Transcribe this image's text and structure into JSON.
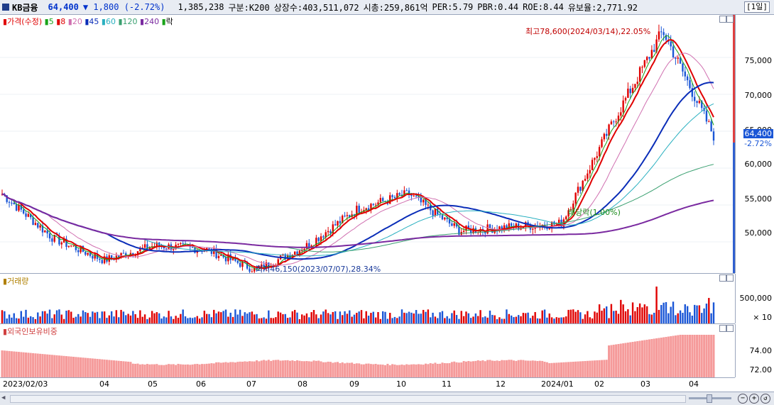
{
  "header": {
    "name": "KB금융",
    "price": "64,400",
    "change": "▼ 1,800 (-2.72%)",
    "volume": "1,385,238",
    "segment": "구분:K200",
    "shares": "상장수:403,511,072",
    "market_cap": "시총:259,861억",
    "per": "PER:5.79",
    "pbr": "PBR:0.44",
    "roe": "ROE:8.44",
    "float": "유보율:2,771.92",
    "period": "[1일]"
  },
  "legend": {
    "price_label": "가격(수정)",
    "items": [
      {
        "label": "5",
        "color": "#19a319"
      },
      {
        "label": "8",
        "color": "#e00000"
      },
      {
        "label": "20",
        "color": "#d070b0"
      },
      {
        "label": "45",
        "color": "#0a2db8"
      },
      {
        "label": "60",
        "color": "#2ab0c0"
      },
      {
        "label": "120",
        "color": "#3aa070"
      },
      {
        "label": "240",
        "color": "#7a2aa0"
      }
    ],
    "tail_label": "락"
  },
  "volume_pane": {
    "label": "거래량",
    "y_ticks": [
      "500,000",
      "× 10"
    ]
  },
  "foreign_pane": {
    "label": "외국인보유비중",
    "y_ticks": [
      "74.00",
      "72.00"
    ]
  },
  "price_axis": {
    "ticks": [
      "75,000",
      "70,000",
      "65,000",
      "60,000",
      "55,000",
      "50,000"
    ],
    "current": "64,400",
    "current_pct": "-2.72%"
  },
  "annotations": {
    "high": "최고78,600(2024/03/14),22.05%",
    "low": "최저46,150(2023/07/07),28.34%",
    "dividend": "배당락(1.00%)"
  },
  "x_axis": {
    "ticks": [
      "2023/02/03",
      "04",
      "05",
      "06",
      "07",
      "08",
      "09",
      "10",
      "11",
      "12",
      "2024/01",
      "02",
      "03",
      "04"
    ]
  },
  "colors": {
    "up": "#e00000",
    "down": "#1a56d6",
    "foreign": "#f59a9a",
    "panel_bg": "#ffffff",
    "header_bg": "#e8ecf3"
  },
  "chart_data": {
    "type": "candlestick",
    "period": "daily",
    "x_range": [
      "2023/02/03",
      "2024/04"
    ],
    "ylim": [
      45000,
      80000
    ],
    "close_anchors": [
      {
        "date": "2023/02/03",
        "value": 56500
      },
      {
        "date": "2023/03",
        "value": 50500
      },
      {
        "date": "2023/04",
        "value": 47500
      },
      {
        "date": "2023/05",
        "value": 49500
      },
      {
        "date": "2023/06",
        "value": 49000
      },
      {
        "date": "2023/07/07",
        "value": 46150
      },
      {
        "date": "2023/08",
        "value": 49500
      },
      {
        "date": "2023/09",
        "value": 54500
      },
      {
        "date": "2023/10",
        "value": 56500
      },
      {
        "date": "2023/11",
        "value": 51500
      },
      {
        "date": "2023/12",
        "value": 52000
      },
      {
        "date": "2024/01",
        "value": 52500
      },
      {
        "date": "2024/02",
        "value": 66000
      },
      {
        "date": "2024/03/14",
        "value": 78600
      },
      {
        "date": "2024/04",
        "value": 64400
      }
    ],
    "high": {
      "date": "2024/03/14",
      "value": 78600
    },
    "low": {
      "date": "2023/07/07",
      "value": 46150
    },
    "last": 64400
  }
}
